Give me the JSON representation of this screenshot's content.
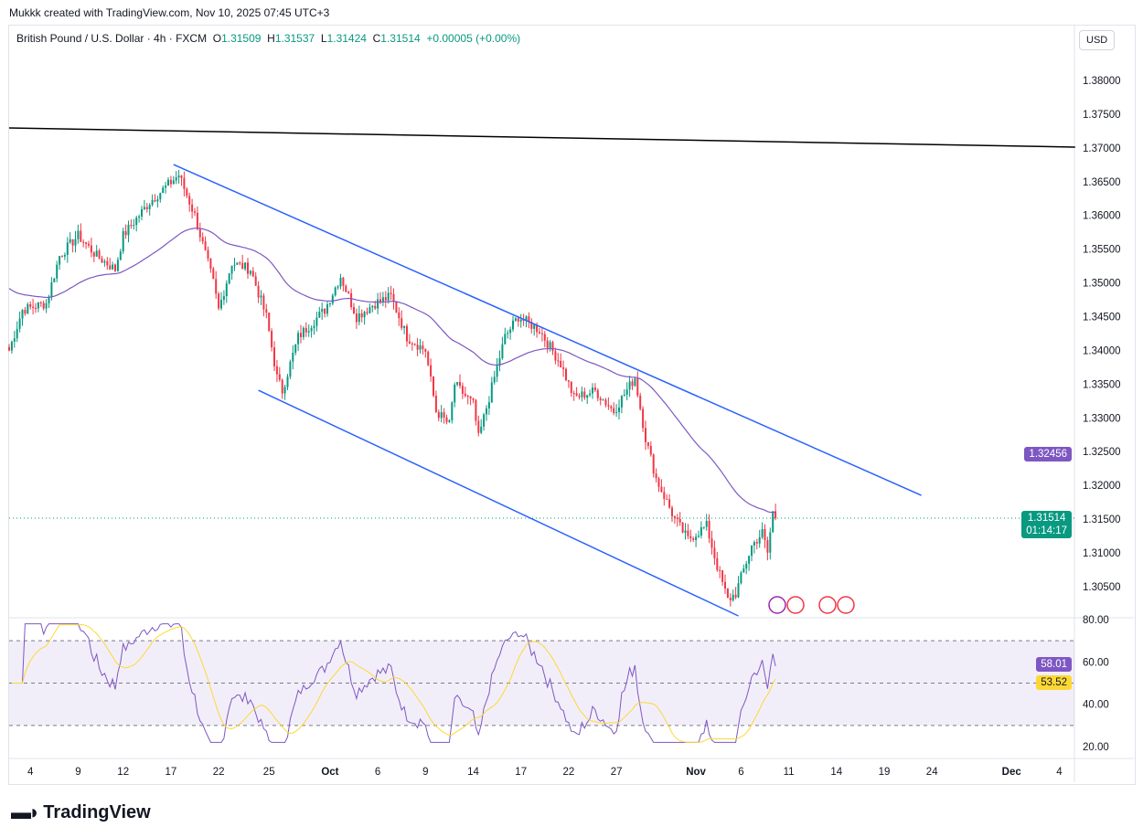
{
  "credit": "Mukkk created with TradingView.com, Nov 10, 2025 07:45 UTC+3",
  "legend": {
    "symbol": "British Pound / U.S. Dollar · 4h · FXCM",
    "o_label": "O",
    "o": "1.31509",
    "h_label": "H",
    "h": "1.31537",
    "l_label": "L",
    "l": "1.31424",
    "c_label": "C",
    "c": "1.31514",
    "change": "+0.00005 (+0.00%)"
  },
  "currency": "USD",
  "tags": {
    "ma": "1.32456",
    "price": "1.31514",
    "countdown": "01:14:17",
    "rsi": "58.01",
    "rsi_ma": "53.52"
  },
  "brand": "TradingView",
  "colors": {
    "up": "#089981",
    "down": "#f23645",
    "ma": "#7e57c2",
    "channel": "#2962ff",
    "rsi": "#7e57c2",
    "rsi_ma": "#fdd835"
  },
  "chart_data": {
    "type": "candlestick",
    "title": "British Pound / U.S. Dollar · 4h · FXCM",
    "price_ticks": [
      "1.38000",
      "1.37500",
      "1.37000",
      "1.36500",
      "1.36000",
      "1.35500",
      "1.35000",
      "1.34500",
      "1.34000",
      "1.33500",
      "1.33000",
      "1.32500",
      "1.32000",
      "1.31500",
      "1.31000",
      "1.30500"
    ],
    "price_range": [
      1.3013,
      1.3868
    ],
    "rsi_ticks": [
      "80.00",
      "60.00",
      "40.00",
      "20.00"
    ],
    "rsi_range": [
      20,
      80
    ],
    "rsi_bands": [
      70,
      50,
      30
    ],
    "x_ticks": [
      {
        "label": "4",
        "bar": 8
      },
      {
        "label": "9",
        "bar": 26
      },
      {
        "label": "12",
        "bar": 43
      },
      {
        "label": "17",
        "bar": 61
      },
      {
        "label": "22",
        "bar": 79
      },
      {
        "label": "25",
        "bar": 98
      },
      {
        "label": "Oct",
        "bar": 121
      },
      {
        "label": "6",
        "bar": 139
      },
      {
        "label": "9",
        "bar": 157
      },
      {
        "label": "14",
        "bar": 175
      },
      {
        "label": "17",
        "bar": 193
      },
      {
        "label": "22",
        "bar": 211
      },
      {
        "label": "27",
        "bar": 229
      },
      {
        "label": "Nov",
        "bar": 259
      },
      {
        "label": "6",
        "bar": 276
      },
      {
        "label": "11",
        "bar": 294
      },
      {
        "label": "14",
        "bar": 312
      },
      {
        "label": "19",
        "bar": 330
      },
      {
        "label": "24",
        "bar": 348
      },
      {
        "label": "Dec",
        "bar": 378
      },
      {
        "label": "4",
        "bar": 396
      }
    ],
    "close_waypoints": [
      [
        0,
        1.34
      ],
      [
        5,
        1.346
      ],
      [
        14,
        1.347
      ],
      [
        19,
        1.354
      ],
      [
        26,
        1.357
      ],
      [
        33,
        1.354
      ],
      [
        40,
        1.352
      ],
      [
        43,
        1.357
      ],
      [
        53,
        1.362
      ],
      [
        64,
        1.366
      ],
      [
        70,
        1.36
      ],
      [
        77,
        1.35
      ],
      [
        79,
        1.346
      ],
      [
        84,
        1.353
      ],
      [
        91,
        1.352
      ],
      [
        97,
        1.345
      ],
      [
        101,
        1.336
      ],
      [
        103,
        1.334
      ],
      [
        109,
        1.342
      ],
      [
        119,
        1.346
      ],
      [
        125,
        1.351
      ],
      [
        131,
        1.345
      ],
      [
        138,
        1.347
      ],
      [
        144,
        1.348
      ],
      [
        150,
        1.342
      ],
      [
        157,
        1.34
      ],
      [
        161,
        1.331
      ],
      [
        166,
        1.329
      ],
      [
        168,
        1.335
      ],
      [
        175,
        1.332
      ],
      [
        177,
        1.327
      ],
      [
        181,
        1.333
      ],
      [
        187,
        1.342
      ],
      [
        192,
        1.345
      ],
      [
        200,
        1.343
      ],
      [
        208,
        1.338
      ],
      [
        213,
        1.333
      ],
      [
        221,
        1.334
      ],
      [
        228,
        1.331
      ],
      [
        236,
        1.336
      ],
      [
        240,
        1.327
      ],
      [
        244,
        1.321
      ],
      [
        251,
        1.315
      ],
      [
        256,
        1.312
      ],
      [
        263,
        1.314
      ],
      [
        267,
        1.308
      ],
      [
        271,
        1.303
      ],
      [
        274,
        1.304
      ],
      [
        280,
        1.311
      ],
      [
        284,
        1.313
      ],
      [
        286,
        1.31
      ],
      [
        288,
        1.316
      ],
      [
        289,
        1.31514
      ]
    ],
    "trendlines": [
      {
        "name": "resistance",
        "color": "#000000",
        "points": [
          [
            0,
            1.37296
          ],
          [
            402,
            1.37012
          ]
        ]
      },
      {
        "name": "channel-upper",
        "color": "#2962ff",
        "points": [
          [
            62,
            1.36754
          ],
          [
            344,
            1.31853
          ]
        ]
      },
      {
        "name": "channel-lower",
        "color": "#2962ff",
        "points": [
          [
            94,
            1.3341
          ],
          [
            275,
            1.30066
          ]
        ]
      }
    ],
    "last_price": 1.31514,
    "ma_last": 1.32456,
    "rsi_last": 58.01,
    "rsi_ma_last": 53.52
  }
}
